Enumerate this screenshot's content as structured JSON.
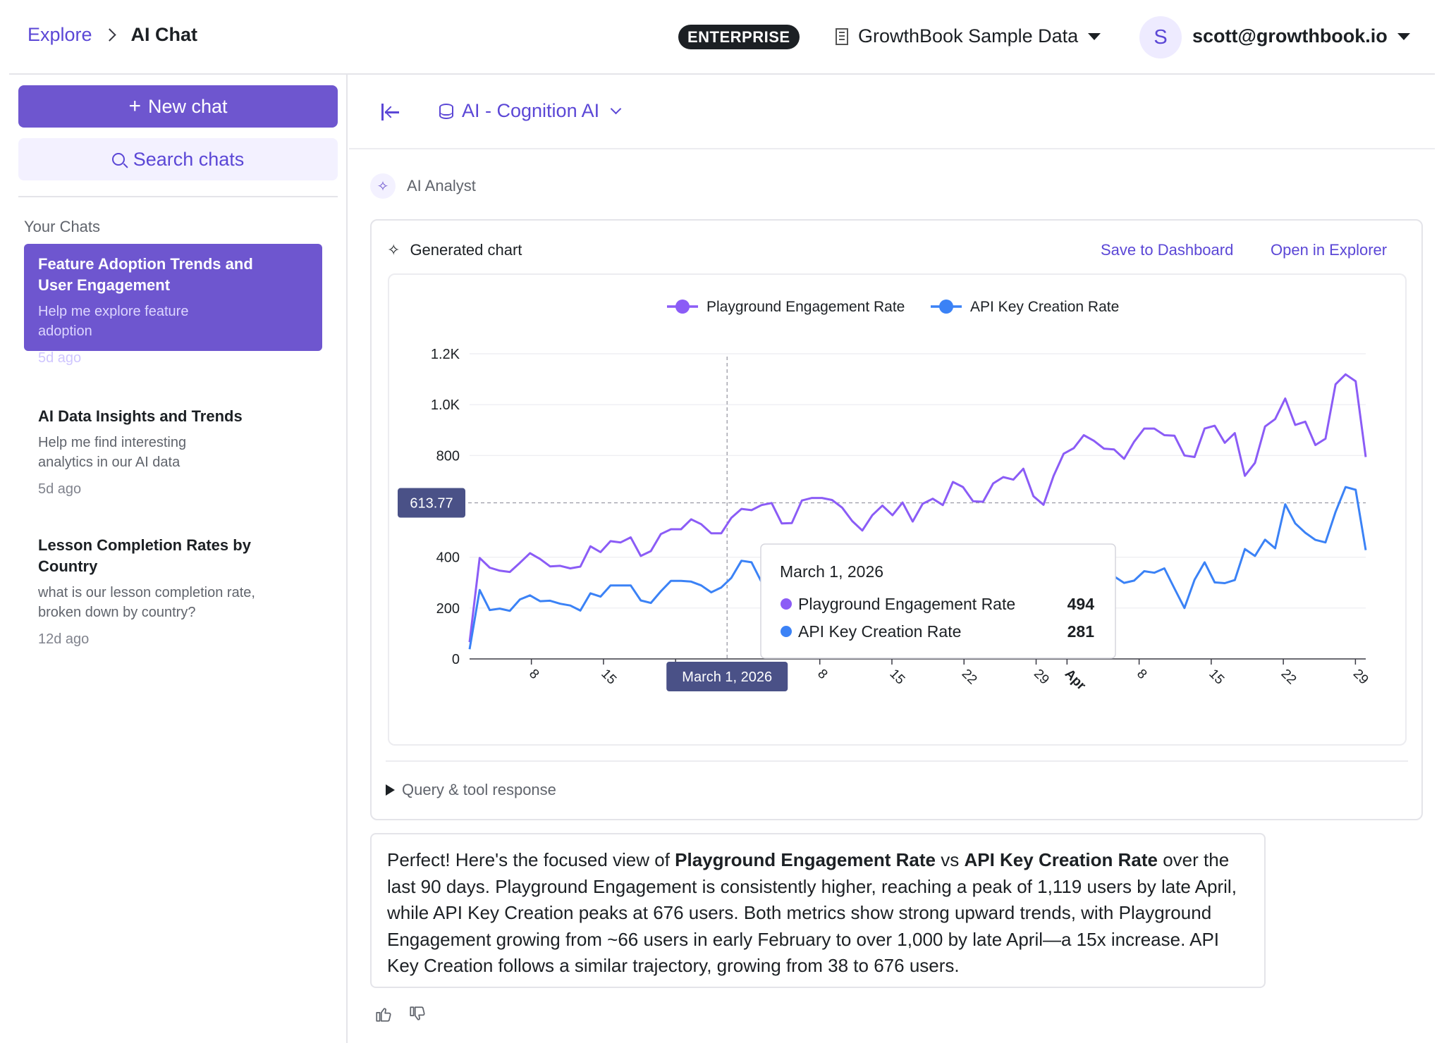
{
  "breadcrumb": {
    "root": "Explore",
    "current": "AI Chat"
  },
  "header": {
    "badge": "ENTERPRISE",
    "org": "GrowthBook Sample Data",
    "user_initial": "S",
    "user_email": "scott@growthbook.io"
  },
  "sidebar": {
    "new_chat": "New chat",
    "search": "Search chats",
    "section": "Your Chats",
    "chats": [
      {
        "title": "Feature Adoption Trends and User Engagement",
        "desc": "Help me explore feature adoption",
        "time": "5d ago"
      },
      {
        "title": "AI Data Insights and Trends",
        "desc": "Help me find interesting analytics in our AI data",
        "time": "5d ago"
      },
      {
        "title": "Lesson Completion Rates by Country",
        "desc": "what is our lesson completion rate, broken down by country?",
        "time": "12d ago"
      }
    ]
  },
  "main": {
    "datasource": "AI - Cognition AI",
    "analyst_label": "AI Analyst",
    "card": {
      "title": "Generated chart",
      "save": "Save to Dashboard",
      "open": "Open in Explorer",
      "query": "Query & tool response"
    },
    "message": {
      "p1": "Perfect! Here's the focused view of ",
      "b1": "Playground Engagement Rate",
      "p2": " vs ",
      "b2": "API Key Creation Rate",
      "p3": " over the last 90 days. Playground Engagement is consistently higher, reaching a peak of 1,119 users by late April, while API Key Creation peaks at 676 users. Both metrics show strong upward trends, with Playground Engagement growing from ~66 users in early February to over 1,000 by late April—a 15x increase. API Key Creation follows a similar trajectory, growing from 38 to 676 users."
    }
  },
  "colors": {
    "accent": "#6e56cf",
    "series1": "#8b5cf6",
    "series2": "#3b82f6"
  },
  "chart_data": {
    "type": "line",
    "legend_position": "top",
    "ylim": [
      0,
      1200
    ],
    "y_ticks": [
      "0",
      "200",
      "400",
      "800",
      "1.0K",
      "1.2K"
    ],
    "y_tick_values": [
      0,
      200,
      400,
      800,
      1000,
      1200
    ],
    "x_ticks": [
      {
        "label": "8",
        "day": 6
      },
      {
        "label": "15",
        "day": 13
      },
      {
        "label": "22",
        "day": 20
      },
      {
        "label": "8",
        "day": 34
      },
      {
        "label": "15",
        "day": 41
      },
      {
        "label": "22",
        "day": 48
      },
      {
        "label": "29",
        "day": 55
      },
      {
        "label": "Apr",
        "day": 58,
        "bold": true
      },
      {
        "label": "8",
        "day": 65
      },
      {
        "label": "15",
        "day": 72
      },
      {
        "label": "22",
        "day": 79
      },
      {
        "label": "29",
        "day": 86
      }
    ],
    "x_range_days": [
      0,
      87
    ],
    "crosshair": {
      "day": 25,
      "x_label": "March 1, 2026",
      "y_value": 613.77,
      "y_label": "613.77"
    },
    "tooltip": {
      "date": "March 1, 2026",
      "rows": [
        {
          "name": "Playground Engagement Rate",
          "value": "494"
        },
        {
          "name": "API Key Creation Rate",
          "value": "281"
        }
      ]
    },
    "series": [
      {
        "name": "Playground Engagement Rate",
        "values": [
          66,
          397,
          359,
          347,
          342,
          378,
          416,
          393,
          364,
          366,
          356,
          363,
          443,
          420,
          463,
          458,
          478,
          405,
          424,
          491,
          510,
          510,
          549,
          530,
          494,
          494,
          555,
          590,
          585,
          605,
          613,
          533,
          534,
          623,
          633,
          633,
          625,
          595,
          542,
          505,
          565,
          603,
          565,
          615,
          540,
          610,
          630,
          605,
          696,
          676,
          620,
          618,
          690,
          715,
          705,
          748,
          640,
          606,
          720,
          807,
          829,
          880,
          858,
          827,
          824,
          787,
          854,
          906,
          906,
          880,
          878,
          800,
          794,
          906,
          917,
          850,
          888,
          720,
          771,
          914,
          943,
          1024,
          920,
          933,
          841,
          866,
          1080,
          1119,
          1092,
          794
        ],
        "values_note": ""
      },
      {
        "name": "API Key Creation Rate",
        "values": [
          38,
          271,
          192,
          198,
          189,
          234,
          250,
          227,
          229,
          217,
          210,
          190,
          258,
          245,
          289,
          289,
          289,
          230,
          220,
          266,
          307,
          307,
          304,
          289,
          262,
          281,
          319,
          386,
          380,
          302,
          309,
          298,
          305,
          310,
          318,
          313,
          316,
          304,
          309,
          302,
          296,
          290,
          303,
          295,
          282,
          293,
          298,
          284,
          311,
          305,
          296,
          292,
          301,
          305,
          299,
          310,
          306,
          299,
          301,
          333,
          338,
          300,
          310,
          320,
          325,
          299,
          308,
          345,
          339,
          356,
          277,
          200,
          311,
          380,
          301,
          298,
          310,
          432,
          405,
          469,
          435,
          608,
          533,
          496,
          468,
          458,
          578,
          676,
          665,
          428
        ],
        "values_note": ""
      }
    ]
  }
}
